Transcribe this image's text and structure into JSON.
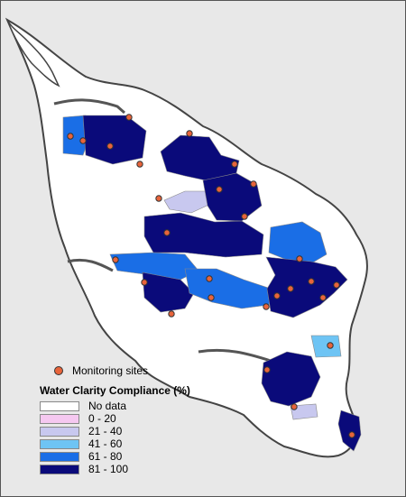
{
  "legend": {
    "sites_label": "Monitoring sites",
    "title": "Water Clarity Compliance (%)",
    "classes": [
      {
        "label": "No data",
        "color": "#ffffff"
      },
      {
        "label": "0 - 20",
        "color": "#f5c8f0"
      },
      {
        "label": "21 - 40",
        "color": "#c8c8ef"
      },
      {
        "label": "41 - 60",
        "color": "#6ec4f4"
      },
      {
        "label": "61 - 80",
        "color": "#1a6ee6"
      },
      {
        "label": "81 - 100",
        "color": "#0a0a7a"
      }
    ]
  },
  "colors": {
    "background": "#e8e8e8",
    "land": "#ffffff",
    "coast": "#555555",
    "site": "#e8643b"
  }
}
